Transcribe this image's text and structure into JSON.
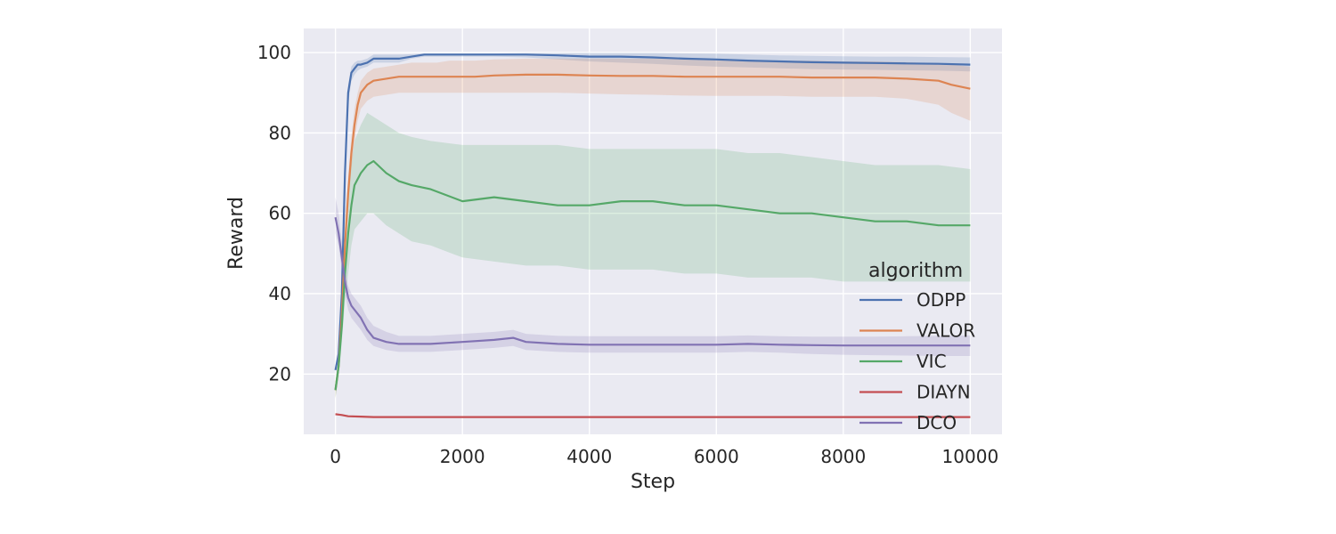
{
  "chart_data": {
    "type": "line",
    "xlabel": "Step",
    "ylabel": "Reward",
    "xlim": [
      -500,
      10500
    ],
    "ylim": [
      5,
      106
    ],
    "xticks": [
      0,
      2000,
      4000,
      6000,
      8000,
      10000
    ],
    "yticks": [
      20,
      40,
      60,
      80,
      100
    ],
    "grid": true,
    "legend": {
      "title": "algorithm",
      "placement": "lower-right"
    },
    "series": [
      {
        "name": "ODPP",
        "color": "#4c72b0",
        "x": [
          0,
          50,
          100,
          150,
          200,
          250,
          300,
          350,
          400,
          500,
          600,
          800,
          1000,
          1200,
          1400,
          1600,
          1800,
          2000,
          2200,
          2500,
          3000,
          3500,
          4000,
          4500,
          5000,
          5500,
          6000,
          6500,
          7000,
          7500,
          8000,
          8500,
          9000,
          9500,
          10000
        ],
        "y": [
          21,
          25,
          40,
          70,
          90,
          95,
          96,
          97,
          97,
          97.5,
          98.5,
          98.5,
          98.5,
          99,
          99.5,
          99.5,
          99.5,
          99.5,
          99.5,
          99.5,
          99.5,
          99.3,
          99,
          99,
          98.8,
          98.5,
          98.3,
          98,
          97.8,
          97.6,
          97.5,
          97.4,
          97.3,
          97.2,
          97
        ],
        "lower": [
          20,
          24,
          38,
          67,
          87,
          93,
          94.5,
          95.5,
          96,
          96.5,
          97.5,
          97.5,
          97.5,
          98.5,
          99,
          99,
          99,
          99,
          99,
          99,
          98.8,
          98.3,
          97.8,
          97.5,
          97.2,
          96.8,
          96.5,
          96.3,
          96.1,
          95.9,
          95.8,
          95.7,
          95.6,
          95.5,
          95.3
        ],
        "upper": [
          22,
          26,
          42,
          73,
          92,
          96.5,
          97.5,
          98,
          98,
          98.5,
          99.5,
          99.5,
          99.5,
          99.6,
          99.8,
          99.8,
          99.8,
          99.8,
          99.8,
          99.8,
          99.9,
          99.9,
          99.9,
          99.9,
          99.9,
          99.8,
          99.7,
          99.5,
          99.3,
          99.2,
          99.1,
          99,
          99,
          98.9,
          98.8
        ]
      },
      {
        "name": "VALOR",
        "color": "#dd8452",
        "x": [
          0,
          50,
          100,
          150,
          200,
          250,
          300,
          350,
          400,
          500,
          600,
          800,
          1000,
          1200,
          1400,
          1600,
          1800,
          2000,
          2200,
          2500,
          3000,
          3500,
          4000,
          4500,
          5000,
          5500,
          6000,
          6500,
          7000,
          7500,
          8000,
          8500,
          9000,
          9500,
          9700,
          10000
        ],
        "y": [
          16,
          22,
          35,
          52,
          65,
          75,
          82,
          87,
          90,
          92,
          93,
          93.5,
          94,
          94,
          94,
          94,
          94,
          94,
          94,
          94.3,
          94.5,
          94.5,
          94.3,
          94.2,
          94.2,
          94,
          94,
          94,
          94,
          93.8,
          93.8,
          93.8,
          93.5,
          93,
          92,
          91
        ],
        "lower": [
          14,
          20,
          32,
          48,
          61,
          71,
          78,
          83,
          86,
          88,
          89,
          89.5,
          90,
          90,
          90,
          90,
          90,
          90,
          90,
          90,
          90,
          90,
          89.8,
          89.6,
          89.5,
          89.3,
          89.2,
          89.2,
          89.2,
          89,
          89,
          89,
          88.5,
          87,
          85,
          83
        ],
        "upper": [
          18,
          24,
          38,
          56,
          69,
          79,
          86,
          90,
          93,
          95,
          96,
          96.5,
          97,
          97.5,
          97.5,
          97.5,
          98,
          98,
          98,
          98.3,
          98.5,
          98.5,
          98.5,
          98.5,
          98.5,
          98.3,
          98.2,
          98,
          98,
          98,
          97.8,
          97.8,
          97.6,
          97.3,
          97,
          96.5
        ]
      },
      {
        "name": "VIC",
        "color": "#55a868",
        "x": [
          0,
          50,
          100,
          150,
          200,
          250,
          300,
          400,
          500,
          600,
          800,
          1000,
          1200,
          1500,
          2000,
          2500,
          3000,
          3500,
          4000,
          4500,
          5000,
          5500,
          6000,
          6500,
          7000,
          7500,
          8000,
          8500,
          9000,
          9500,
          10000
        ],
        "y": [
          16,
          22,
          32,
          45,
          55,
          62,
          67,
          70,
          72,
          73,
          70,
          68,
          67,
          66,
          63,
          64,
          63,
          62,
          62,
          63,
          63,
          62,
          62,
          61,
          60,
          60,
          59,
          58,
          58,
          57,
          57
        ],
        "lower": [
          14,
          19,
          28,
          38,
          45,
          52,
          56,
          58,
          60,
          60,
          57,
          55,
          53,
          52,
          49,
          48,
          47,
          47,
          46,
          46,
          46,
          45,
          45,
          44,
          44,
          44,
          43,
          43,
          43,
          43,
          43
        ],
        "upper": [
          18,
          25,
          36,
          52,
          65,
          72,
          78,
          82,
          85,
          84,
          82,
          80,
          79,
          78,
          77,
          77,
          77,
          77,
          76,
          76,
          76,
          76,
          76,
          75,
          75,
          74,
          73,
          72,
          72,
          72,
          71
        ]
      },
      {
        "name": "DIAYN",
        "color": "#c44e52",
        "x": [
          0,
          100,
          200,
          400,
          600,
          1000,
          2000,
          4000,
          6000,
          8000,
          10000
        ],
        "y": [
          10,
          9.8,
          9.5,
          9.4,
          9.3,
          9.3,
          9.3,
          9.3,
          9.3,
          9.3,
          9.3
        ],
        "lower": [
          9.8,
          9.6,
          9.3,
          9.2,
          9.1,
          9.1,
          9.1,
          9.1,
          9.1,
          9.1,
          9.1
        ],
        "upper": [
          10.2,
          10,
          9.7,
          9.6,
          9.5,
          9.5,
          9.5,
          9.5,
          9.5,
          9.5,
          9.5
        ]
      },
      {
        "name": "DCO",
        "color": "#8172b3",
        "x": [
          0,
          50,
          100,
          150,
          200,
          250,
          300,
          400,
          500,
          600,
          800,
          1000,
          1500,
          2000,
          2500,
          2800,
          3000,
          3500,
          4000,
          4500,
          5000,
          5500,
          6000,
          6500,
          7000,
          7500,
          8000,
          8500,
          9000,
          9500,
          10000
        ],
        "y": [
          59,
          55,
          49,
          43,
          39,
          37,
          36,
          34,
          31,
          29,
          28,
          27.5,
          27.5,
          28,
          28.5,
          29,
          28,
          27.5,
          27.3,
          27.3,
          27.3,
          27.3,
          27.3,
          27.5,
          27.3,
          27.2,
          27.1,
          27.1,
          27.1,
          27.1,
          27.1
        ],
        "lower": [
          55,
          52,
          46,
          40,
          36,
          34,
          33,
          31,
          28.5,
          27,
          26,
          25.5,
          25.5,
          26,
          26.5,
          27,
          26,
          25.5,
          25.3,
          25.3,
          25.3,
          25.3,
          25.3,
          25.5,
          25.3,
          25,
          24.8,
          24.7,
          24.6,
          24.5,
          24.5
        ],
        "upper": [
          64,
          60,
          53,
          46,
          42,
          40,
          39,
          37,
          34,
          32,
          30.5,
          29.5,
          29.5,
          30,
          30.5,
          31,
          30,
          29.5,
          29.4,
          29.4,
          29.4,
          29.4,
          29.4,
          29.6,
          29.4,
          29.3,
          29.3,
          29.3,
          29.4,
          29.5,
          29.6
        ]
      }
    ]
  }
}
